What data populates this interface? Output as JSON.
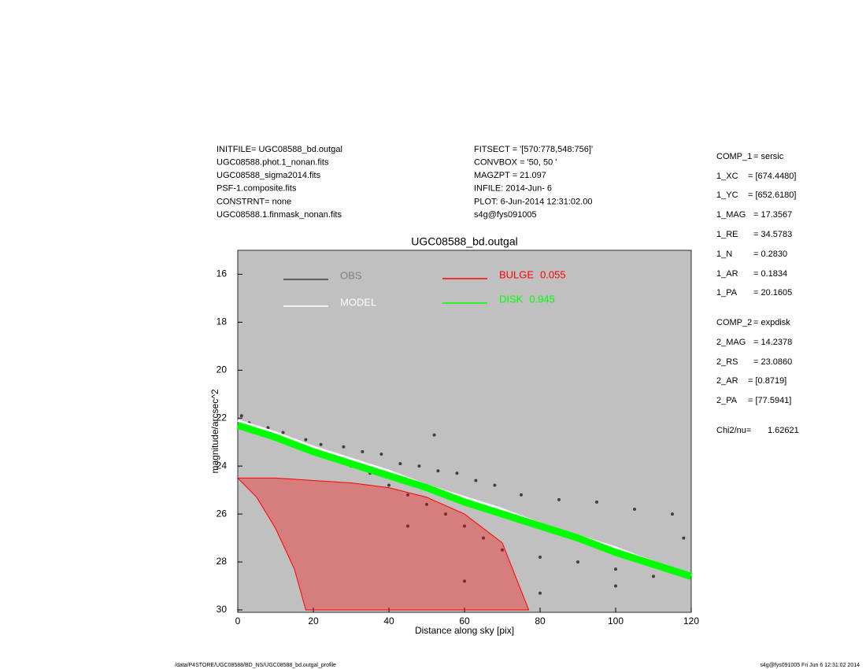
{
  "header": {
    "left": [
      "INITFILE= UGC08588_bd.outgal",
      "UGC08588.phot.1_nonan.fits",
      "UGC08588_sigma2014.fits",
      "PSF-1.composite.fits",
      "CONSTRNT= none",
      "UGC08588.1.finmask_nonan.fits"
    ],
    "middle": [
      "FITSECT = '[570:778,548:756]'",
      "CONVBOX = '50, 50  '",
      "MAGZPT  =           21.097",
      "INFILE: 2014-Jun- 6",
      "PLOT:  6-Jun-2014 12:31:02.00",
      "s4g@fys091005"
    ]
  },
  "params": [
    {
      "label": "COMP_1",
      "value": "= sersic"
    },
    {
      "label": "1_XC",
      "value": "= [674.4480]"
    },
    {
      "label": "1_YC",
      "value": "= [652.6180]"
    },
    {
      "label": "1_MAG",
      "value": "= 17.3567"
    },
    {
      "label": "1_RE",
      "value": "= 34.5783"
    },
    {
      "label": "1_N",
      "value": "= 0.2830"
    },
    {
      "label": "1_AR",
      "value": "= 0.1834"
    },
    {
      "label": "1_PA",
      "value": "= 20.1605"
    },
    {
      "label": "COMP_2",
      "value": "= expdisk"
    },
    {
      "label": "2_MAG",
      "value": "= 14.2378"
    },
    {
      "label": "2_RS",
      "value": "= 23.0860"
    },
    {
      "label": "2_AR",
      "value": "= [0.8719]"
    },
    {
      "label": "2_PA",
      "value": "= [77.5941]"
    },
    {
      "label": "Chi2/nu=",
      "value": "1.62621"
    }
  ],
  "footer": {
    "left": "/data/P4STORE/UGC08588/BD_NS/UGC08588_bd.outgal_profile",
    "right": "s4g@fys091005  Fri Jun  6 12:31:02 2014"
  },
  "chart_data": {
    "type": "scatter",
    "title": "UGC08588_bd.outgal",
    "x_label": "Distance along sky [pix]",
    "y_label": "magnitude/arcsec^2",
    "xlim": [
      0,
      120
    ],
    "xticks": [
      0,
      20,
      40,
      60,
      80,
      100,
      120
    ],
    "ylim": [
      30.1,
      15
    ],
    "yticks": [
      16,
      18,
      20,
      22,
      24,
      26,
      28,
      30
    ],
    "background": "#c0c0c0",
    "series": [
      {
        "name": "OBS",
        "color": "#404040",
        "style": "points",
        "x": [
          1,
          3,
          5,
          8,
          10,
          12,
          15,
          18,
          20,
          22,
          25,
          28,
          30,
          33,
          35,
          38,
          40,
          43,
          45,
          48,
          50,
          53,
          55,
          58,
          60,
          63,
          65,
          68,
          70,
          75,
          80,
          85,
          90,
          95,
          100,
          105,
          110,
          115,
          118,
          45,
          60,
          80,
          100,
          52
        ],
        "values": [
          21.9,
          22.2,
          22.5,
          22.4,
          22.8,
          22.6,
          23.0,
          22.9,
          23.4,
          23.1,
          23.6,
          23.2,
          24.0,
          23.4,
          24.3,
          23.5,
          24.8,
          23.9,
          25.2,
          24.0,
          25.6,
          24.2,
          26.0,
          24.3,
          26.5,
          24.6,
          27.0,
          24.8,
          27.5,
          25.2,
          27.8,
          25.4,
          28.0,
          25.5,
          28.3,
          25.8,
          28.6,
          26.0,
          27.0,
          26.5,
          28.8,
          29.3,
          29.0,
          22.7
        ]
      },
      {
        "name": "MODEL",
        "color": "#ffffff",
        "style": "line",
        "x": [
          0,
          10,
          20,
          30,
          40,
          50,
          60,
          70,
          80,
          90,
          100,
          110,
          120
        ],
        "values": [
          22.1,
          22.6,
          23.2,
          23.7,
          24.2,
          24.8,
          25.3,
          25.8,
          26.4,
          26.9,
          27.4,
          28.0,
          28.5
        ]
      },
      {
        "name": "BULGE",
        "fraction": 0.055,
        "color": "#ff0000",
        "style": "area",
        "x": [
          0,
          10,
          20,
          30,
          40,
          50,
          60,
          70,
          77,
          18,
          15,
          10,
          5
        ],
        "values": [
          24.5,
          24.5,
          24.6,
          24.7,
          24.9,
          25.3,
          26.0,
          27.2,
          30.0,
          30.0,
          28.3,
          26.6,
          25.3
        ]
      },
      {
        "name": "DISK",
        "fraction": 0.945,
        "color": "#00ff00",
        "style": "band",
        "x": [
          0,
          10,
          20,
          30,
          40,
          50,
          60,
          70,
          80,
          90,
          100,
          110,
          120
        ],
        "values": [
          22.3,
          22.8,
          23.4,
          23.9,
          24.4,
          24.9,
          25.5,
          26.0,
          26.5,
          27.0,
          27.6,
          28.1,
          28.6
        ]
      }
    ]
  }
}
